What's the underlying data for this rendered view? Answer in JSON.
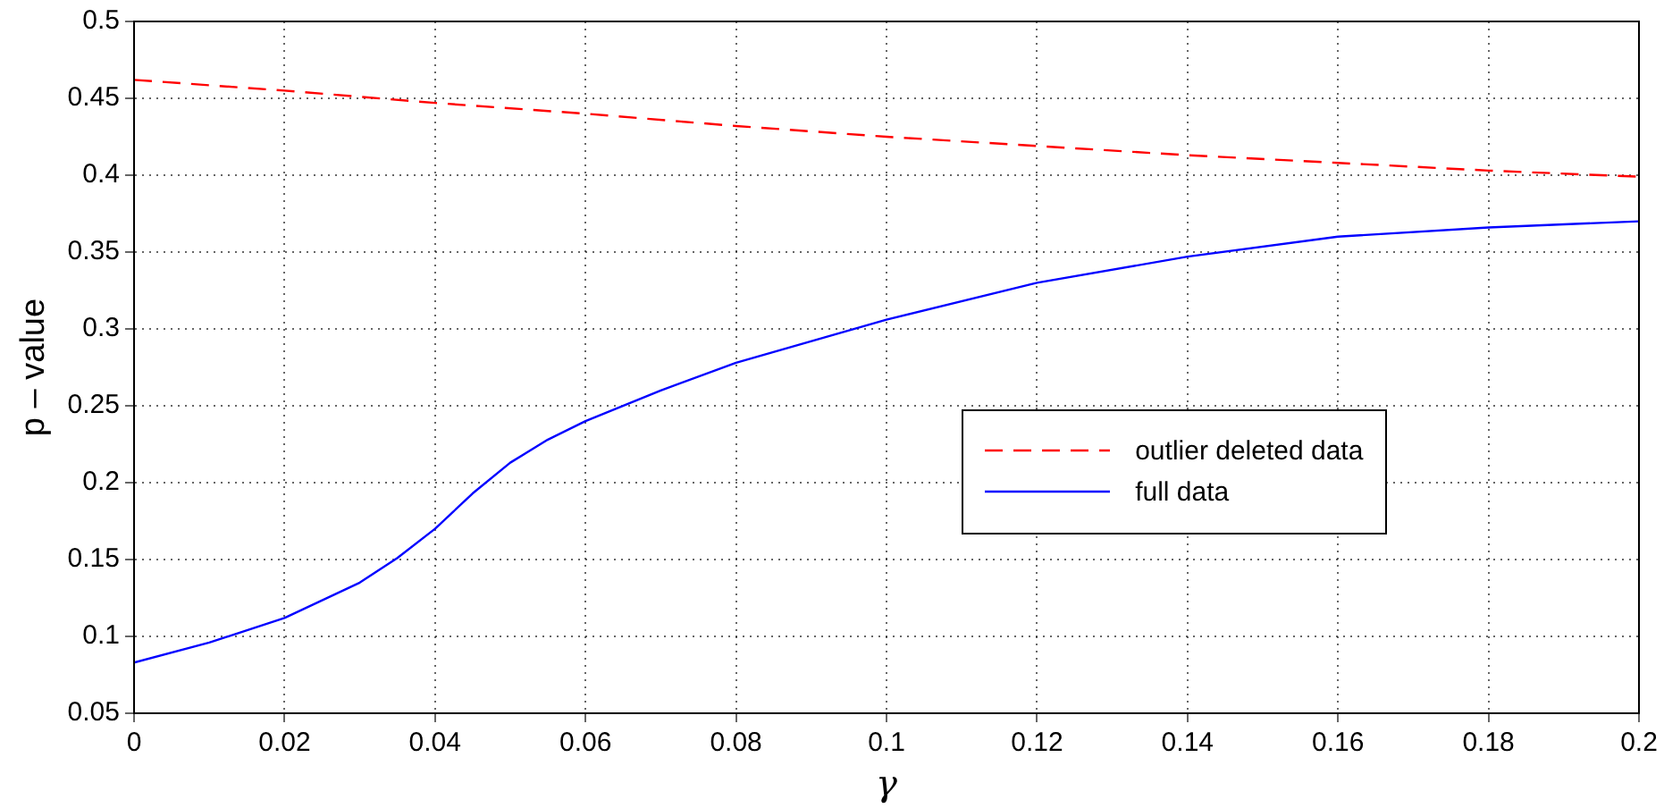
{
  "chart_data": {
    "type": "line",
    "xlabel": "γ",
    "ylabel": "p – value",
    "xlim": [
      0,
      0.2
    ],
    "ylim": [
      0.05,
      0.5
    ],
    "xticks": [
      0,
      0.02,
      0.04,
      0.06,
      0.08,
      0.1,
      0.12,
      0.14,
      0.16,
      0.18,
      0.2
    ],
    "yticks": [
      0.05,
      0.1,
      0.15,
      0.2,
      0.25,
      0.3,
      0.35,
      0.4,
      0.45,
      0.5
    ],
    "grid": true,
    "legend": "right",
    "marker": "none",
    "series": [
      {
        "name": "outlier deleted data",
        "color": "#ff0000",
        "line_style": "dashed",
        "x": [
          0,
          0.02,
          0.04,
          0.06,
          0.08,
          0.1,
          0.12,
          0.14,
          0.16,
          0.18,
          0.2
        ],
        "values": [
          0.462,
          0.455,
          0.447,
          0.44,
          0.432,
          0.425,
          0.419,
          0.413,
          0.408,
          0.403,
          0.399
        ]
      },
      {
        "name": "full data",
        "color": "#0000ff",
        "line_style": "solid",
        "x": [
          0,
          0.01,
          0.02,
          0.03,
          0.035,
          0.04,
          0.045,
          0.05,
          0.055,
          0.06,
          0.07,
          0.08,
          0.1,
          0.12,
          0.14,
          0.16,
          0.18,
          0.2
        ],
        "values": [
          0.083,
          0.096,
          0.112,
          0.135,
          0.151,
          0.17,
          0.193,
          0.213,
          0.228,
          0.24,
          0.26,
          0.278,
          0.306,
          0.33,
          0.347,
          0.36,
          0.366,
          0.37
        ]
      }
    ]
  }
}
